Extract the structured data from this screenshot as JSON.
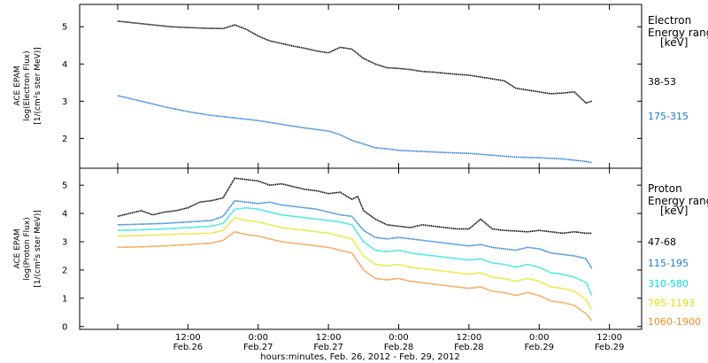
{
  "chart_data": [
    {
      "type": "line",
      "ylabel_lines": [
        "ACE EPAM",
        "log(Electron Flux)",
        "[1/(cm²s ster MeV)]"
      ],
      "yticks": [
        "2",
        "3",
        "4",
        "5"
      ],
      "ylim": [
        1.2,
        5.6
      ],
      "x_hours": [
        0,
        12,
        24,
        36,
        48,
        60,
        72,
        84
      ],
      "legend_title": [
        "Electron",
        "Energy range",
        "[keV]"
      ],
      "series": [
        {
          "name": "38-53",
          "color": "#000000",
          "x": [
            0,
            3,
            6,
            9,
            12,
            15,
            18,
            20,
            22,
            24,
            26,
            28,
            30,
            32,
            34,
            36,
            38,
            40,
            42,
            44,
            46,
            48,
            50,
            52,
            54,
            56,
            58,
            60,
            62,
            64,
            66,
            68,
            70,
            72,
            74,
            76,
            78,
            80,
            81
          ],
          "y": [
            5.15,
            5.1,
            5.05,
            5.0,
            4.98,
            4.96,
            4.95,
            5.05,
            4.93,
            4.75,
            4.62,
            4.55,
            4.48,
            4.42,
            4.35,
            4.3,
            4.45,
            4.4,
            4.15,
            4.0,
            3.9,
            3.88,
            3.85,
            3.8,
            3.78,
            3.75,
            3.72,
            3.7,
            3.65,
            3.6,
            3.55,
            3.35,
            3.3,
            3.25,
            3.2,
            3.22,
            3.25,
            2.95,
            3.0
          ]
        },
        {
          "name": "175-315",
          "color": "#1e78d8",
          "x": [
            0,
            4,
            8,
            12,
            16,
            20,
            24,
            28,
            32,
            36,
            38,
            40,
            42,
            44,
            46,
            48,
            52,
            56,
            60,
            64,
            68,
            72,
            76,
            80,
            81
          ],
          "y": [
            3.15,
            3.0,
            2.85,
            2.72,
            2.62,
            2.55,
            2.48,
            2.38,
            2.28,
            2.2,
            2.1,
            1.95,
            1.85,
            1.75,
            1.72,
            1.68,
            1.65,
            1.62,
            1.6,
            1.55,
            1.5,
            1.48,
            1.45,
            1.38,
            1.35
          ]
        }
      ]
    },
    {
      "type": "line",
      "ylabel_lines": [
        "ACE EPAM",
        "log(Proton Flux)",
        "[1/(cm²s ster MeV)]"
      ],
      "yticks": [
        "0",
        "1",
        "2",
        "3",
        "4",
        "5"
      ],
      "ylim": [
        -0.1,
        5.6
      ],
      "x_hours": [
        0,
        12,
        24,
        36,
        48,
        60,
        72,
        84
      ],
      "legend_title": [
        "Proton",
        "Energy range",
        "[keV]"
      ],
      "series": [
        {
          "name": "47-68",
          "color": "#000000",
          "x": [
            0,
            2,
            4,
            6,
            8,
            10,
            12,
            14,
            16,
            18,
            20,
            22,
            24,
            26,
            28,
            30,
            32,
            34,
            36,
            38,
            40,
            41,
            42,
            44,
            46,
            48,
            50,
            52,
            54,
            56,
            58,
            60,
            62,
            64,
            66,
            68,
            70,
            72,
            74,
            76,
            78,
            80,
            81
          ],
          "y": [
            3.9,
            4.0,
            4.1,
            3.95,
            4.05,
            4.1,
            4.2,
            4.4,
            4.45,
            4.55,
            5.25,
            5.2,
            5.15,
            5.0,
            5.05,
            4.95,
            4.85,
            4.8,
            4.7,
            4.75,
            4.5,
            4.6,
            4.1,
            3.8,
            3.6,
            3.55,
            3.5,
            3.6,
            3.55,
            3.5,
            3.45,
            3.45,
            3.8,
            3.45,
            3.4,
            3.38,
            3.35,
            3.4,
            3.35,
            3.3,
            3.35,
            3.3,
            3.3
          ]
        },
        {
          "name": "115-195",
          "color": "#1e78d8",
          "x": [
            0,
            4,
            8,
            12,
            16,
            18,
            20,
            22,
            24,
            26,
            28,
            30,
            32,
            34,
            36,
            38,
            40,
            42,
            44,
            46,
            48,
            50,
            52,
            54,
            56,
            58,
            60,
            62,
            64,
            66,
            68,
            70,
            72,
            74,
            76,
            78,
            80,
            81
          ],
          "y": [
            3.6,
            3.62,
            3.65,
            3.7,
            3.75,
            3.9,
            4.45,
            4.4,
            4.35,
            4.4,
            4.3,
            4.25,
            4.2,
            4.15,
            4.05,
            3.95,
            3.9,
            3.4,
            3.15,
            3.1,
            3.15,
            3.1,
            3.05,
            3.0,
            2.95,
            2.9,
            2.85,
            2.9,
            2.8,
            2.75,
            2.7,
            2.8,
            2.75,
            2.6,
            2.55,
            2.5,
            2.4,
            2.05
          ]
        },
        {
          "name": "310-580",
          "color": "#00e0d8",
          "x": [
            0,
            4,
            8,
            12,
            16,
            18,
            20,
            22,
            24,
            26,
            28,
            30,
            32,
            34,
            36,
            38,
            40,
            42,
            44,
            46,
            48,
            50,
            52,
            54,
            56,
            58,
            60,
            62,
            64,
            66,
            68,
            70,
            72,
            74,
            76,
            78,
            80,
            81
          ],
          "y": [
            3.4,
            3.42,
            3.45,
            3.5,
            3.55,
            3.65,
            4.15,
            4.2,
            4.15,
            4.05,
            3.95,
            3.9,
            3.85,
            3.8,
            3.75,
            3.7,
            3.6,
            3.0,
            2.7,
            2.65,
            2.7,
            2.6,
            2.55,
            2.5,
            2.45,
            2.4,
            2.35,
            2.4,
            2.25,
            2.2,
            2.1,
            2.2,
            2.1,
            1.9,
            1.85,
            1.75,
            1.55,
            1.1
          ]
        },
        {
          "name": "795-1193",
          "color": "#e0e000",
          "x": [
            0,
            4,
            8,
            12,
            16,
            18,
            20,
            22,
            24,
            26,
            28,
            30,
            32,
            34,
            36,
            38,
            40,
            42,
            44,
            46,
            48,
            50,
            52,
            54,
            56,
            58,
            60,
            62,
            64,
            66,
            68,
            70,
            72,
            74,
            76,
            78,
            80,
            81
          ],
          "y": [
            3.2,
            3.22,
            3.25,
            3.28,
            3.3,
            3.4,
            3.85,
            3.75,
            3.7,
            3.6,
            3.5,
            3.45,
            3.4,
            3.35,
            3.3,
            3.2,
            3.1,
            2.5,
            2.2,
            2.15,
            2.2,
            2.1,
            2.05,
            2.0,
            1.95,
            1.9,
            1.85,
            1.9,
            1.75,
            1.7,
            1.6,
            1.7,
            1.6,
            1.4,
            1.35,
            1.25,
            0.95,
            0.6
          ]
        },
        {
          "name": "1060-1900",
          "color": "#f08a20",
          "x": [
            0,
            4,
            8,
            12,
            16,
            18,
            20,
            22,
            24,
            26,
            28,
            30,
            32,
            34,
            36,
            38,
            40,
            42,
            44,
            46,
            48,
            50,
            52,
            54,
            56,
            58,
            60,
            62,
            64,
            66,
            68,
            70,
            72,
            74,
            76,
            78,
            80,
            81
          ],
          "y": [
            2.8,
            2.82,
            2.85,
            2.9,
            2.95,
            3.05,
            3.35,
            3.25,
            3.2,
            3.1,
            3.0,
            2.95,
            2.9,
            2.85,
            2.8,
            2.7,
            2.6,
            2.0,
            1.7,
            1.65,
            1.7,
            1.6,
            1.55,
            1.5,
            1.45,
            1.4,
            1.35,
            1.4,
            1.25,
            1.2,
            1.1,
            1.2,
            1.1,
            0.9,
            0.85,
            0.75,
            0.45,
            0.2
          ]
        }
      ]
    }
  ],
  "xaxis": {
    "ticks": [
      {
        "h": 12,
        "time": "12:00",
        "date": "Feb.26"
      },
      {
        "h": 24,
        "time": "0:00",
        "date": "Feb.27"
      },
      {
        "h": 36,
        "time": "12:00",
        "date": "Feb.27"
      },
      {
        "h": 48,
        "time": "0:00",
        "date": "Feb.28"
      },
      {
        "h": 60,
        "time": "12:00",
        "date": "Feb.28"
      },
      {
        "h": 72,
        "time": "0:00",
        "date": "Feb.29"
      },
      {
        "h": 84,
        "time": "12:00",
        "date": "Feb.29"
      }
    ],
    "label": "hours:minutes, Feb. 26, 2012 - Feb. 29, 2012"
  }
}
